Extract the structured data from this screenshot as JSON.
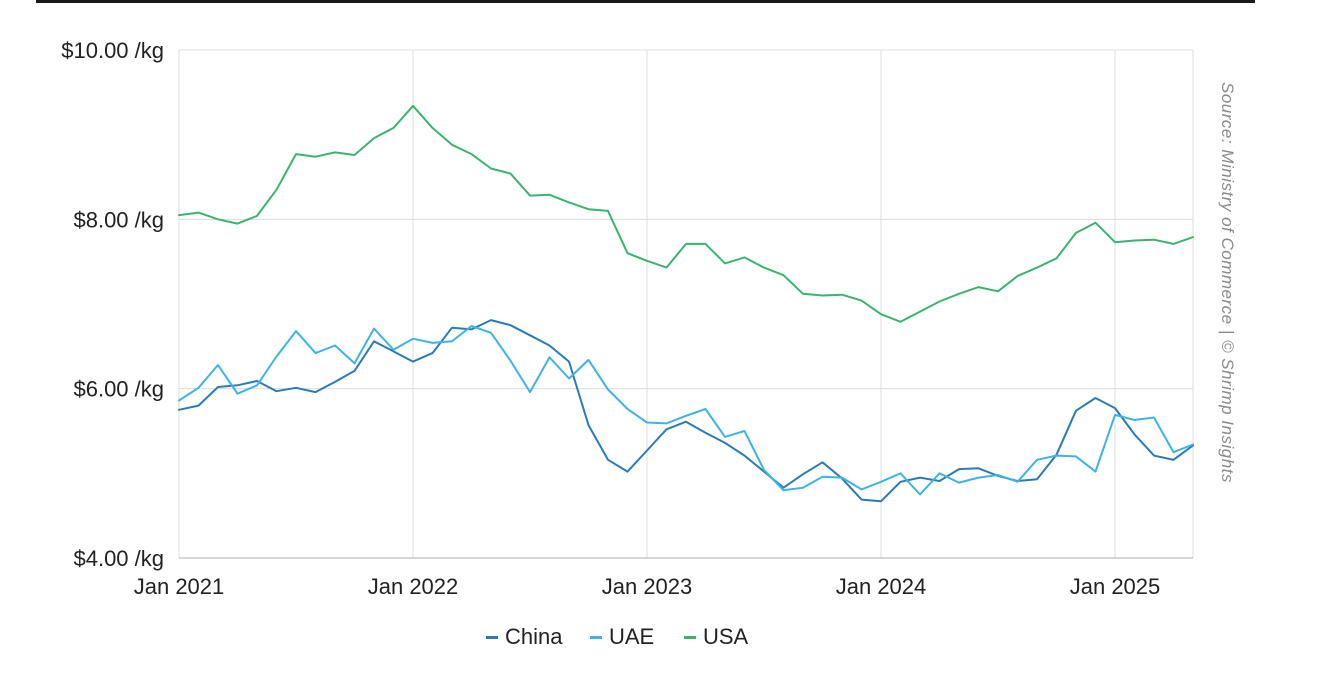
{
  "chart_data": {
    "type": "line",
    "title": "",
    "xlabel": "",
    "ylabel": "",
    "ylim": [
      4,
      10
    ],
    "xlim": [
      "2021-01",
      "2025-05"
    ],
    "grid": true,
    "legend_position": "bottom",
    "source": "Source: Ministry of Commerce | © Shrimp Insights",
    "y_ticks": [
      {
        "value": 4,
        "label": "$4.00 /kg"
      },
      {
        "value": 6,
        "label": "$6.00 /kg"
      },
      {
        "value": 8,
        "label": "$8.00 /kg"
      },
      {
        "value": 10,
        "label": "$10.00 /kg"
      }
    ],
    "x_ticks": [
      {
        "value": "2021-01",
        "label": "Jan 2021"
      },
      {
        "value": "2022-01",
        "label": "Jan 2022"
      },
      {
        "value": "2023-01",
        "label": "Jan 2023"
      },
      {
        "value": "2024-01",
        "label": "Jan 2024"
      },
      {
        "value": "2025-01",
        "label": "Jan 2025"
      }
    ],
    "x": [
      "2021-01",
      "2021-02",
      "2021-03",
      "2021-04",
      "2021-05",
      "2021-06",
      "2021-07",
      "2021-08",
      "2021-09",
      "2021-10",
      "2021-11",
      "2021-12",
      "2022-01",
      "2022-02",
      "2022-03",
      "2022-04",
      "2022-05",
      "2022-06",
      "2022-07",
      "2022-08",
      "2022-09",
      "2022-10",
      "2022-11",
      "2022-12",
      "2023-01",
      "2023-02",
      "2023-03",
      "2023-04",
      "2023-05",
      "2023-06",
      "2023-07",
      "2023-08",
      "2023-09",
      "2023-10",
      "2023-11",
      "2023-12",
      "2024-01",
      "2024-02",
      "2024-03",
      "2024-04",
      "2024-05",
      "2024-06",
      "2024-07",
      "2024-08",
      "2024-09",
      "2024-10",
      "2024-11",
      "2024-12",
      "2025-01",
      "2025-02",
      "2025-03",
      "2025-04",
      "2025-05"
    ],
    "series": [
      {
        "name": "China",
        "color": "#2b7bba",
        "values": [
          5.75,
          5.8,
          6.02,
          6.04,
          6.09,
          5.97,
          6.01,
          5.96,
          6.08,
          6.21,
          6.56,
          6.44,
          6.32,
          6.42,
          6.72,
          6.7,
          6.81,
          6.75,
          6.63,
          6.51,
          6.32,
          5.57,
          5.16,
          5.02,
          5.27,
          5.52,
          5.61,
          5.48,
          5.36,
          5.21,
          5.02,
          4.83,
          4.99,
          5.13,
          4.94,
          4.69,
          4.67,
          4.9,
          4.95,
          4.91,
          5.05,
          5.06,
          4.97,
          4.91,
          4.93,
          5.22,
          5.74,
          5.89,
          5.77,
          5.46,
          5.21,
          5.16,
          5.33
        ]
      },
      {
        "name": "UAE",
        "color": "#3fb3e3",
        "values": [
          5.86,
          6.01,
          6.28,
          5.94,
          6.04,
          6.38,
          6.68,
          6.42,
          6.51,
          6.3,
          6.71,
          6.46,
          6.59,
          6.54,
          6.56,
          6.74,
          6.66,
          6.33,
          5.96,
          6.37,
          6.12,
          6.34,
          5.99,
          5.76,
          5.6,
          5.59,
          5.68,
          5.76,
          5.43,
          5.5,
          5.04,
          4.8,
          4.83,
          4.96,
          4.95,
          4.81,
          4.9,
          5.0,
          4.75,
          5.0,
          4.89,
          4.95,
          4.98,
          4.9,
          5.16,
          5.21,
          5.2,
          5.02,
          5.69,
          5.63,
          5.66,
          5.25,
          5.34
        ]
      },
      {
        "name": "USA",
        "color": "#3cb371",
        "values": [
          8.05,
          8.08,
          8.0,
          7.95,
          8.04,
          8.35,
          8.77,
          8.74,
          8.79,
          8.76,
          8.96,
          9.08,
          9.34,
          9.08,
          8.88,
          8.77,
          8.6,
          8.54,
          8.28,
          8.29,
          8.2,
          8.12,
          8.1,
          7.6,
          7.51,
          7.43,
          7.71,
          7.71,
          7.48,
          7.55,
          7.43,
          7.34,
          7.12,
          7.1,
          7.11,
          7.04,
          6.88,
          6.79,
          6.91,
          7.03,
          7.12,
          7.2,
          7.15,
          7.33,
          7.43,
          7.54,
          7.84,
          7.96,
          7.73,
          7.75,
          7.76,
          7.71,
          7.79
        ]
      }
    ]
  }
}
